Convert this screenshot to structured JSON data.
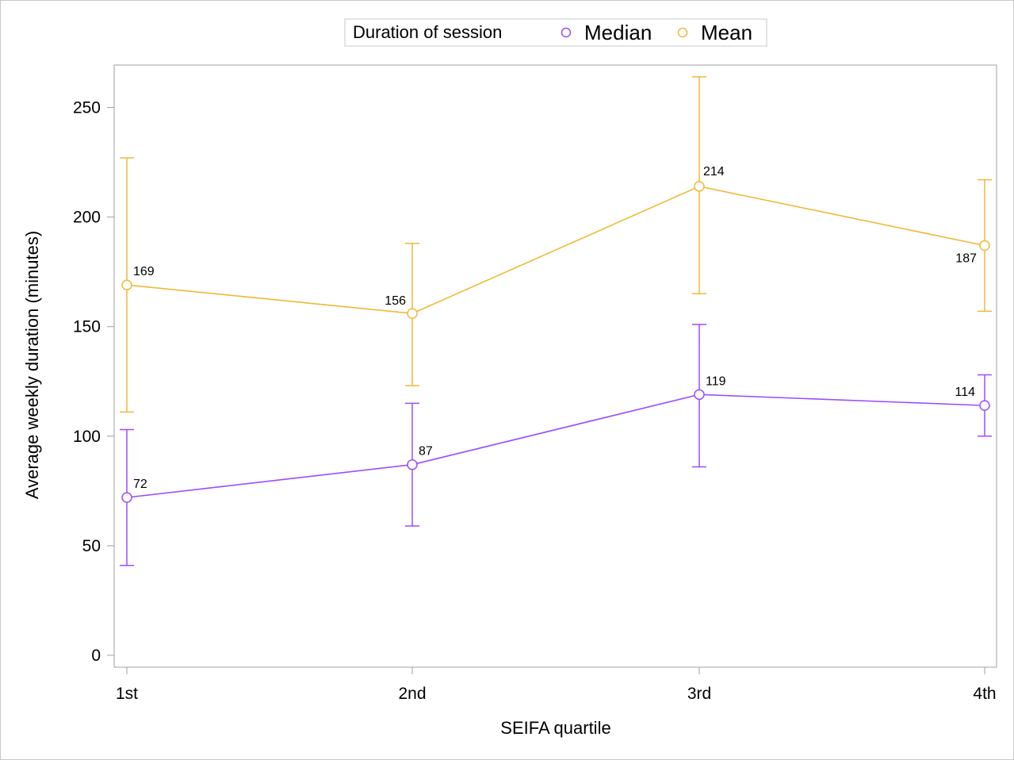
{
  "chart_data": {
    "type": "line",
    "title": "",
    "xlabel": "SEIFA quartile",
    "ylabel": "Average weekly duration (minutes)",
    "categories": [
      "1st",
      "2nd",
      "3rd",
      "4th"
    ],
    "ylim": [
      0,
      260
    ],
    "yticks": [
      0,
      50,
      100,
      150,
      200,
      250
    ],
    "grid": false,
    "legend": {
      "title": "Duration of session",
      "position": "top-center",
      "entries": [
        "Median",
        "Mean"
      ]
    },
    "series": [
      {
        "name": "Median",
        "color": "#9b4dff",
        "marker": "circle",
        "values": [
          72,
          87,
          119,
          114
        ],
        "data_labels": [
          "72",
          "87",
          "119",
          "114"
        ],
        "error_low": [
          41,
          59,
          86,
          100
        ],
        "error_high": [
          103,
          115,
          151,
          128
        ]
      },
      {
        "name": "Mean",
        "color": "#f0b93a",
        "marker": "circle",
        "values": [
          169,
          156,
          214,
          187
        ],
        "data_labels": [
          "169",
          "156",
          "214",
          "187"
        ],
        "error_low": [
          111,
          123,
          165,
          157
        ],
        "error_high": [
          227,
          188,
          264,
          217
        ]
      }
    ]
  }
}
